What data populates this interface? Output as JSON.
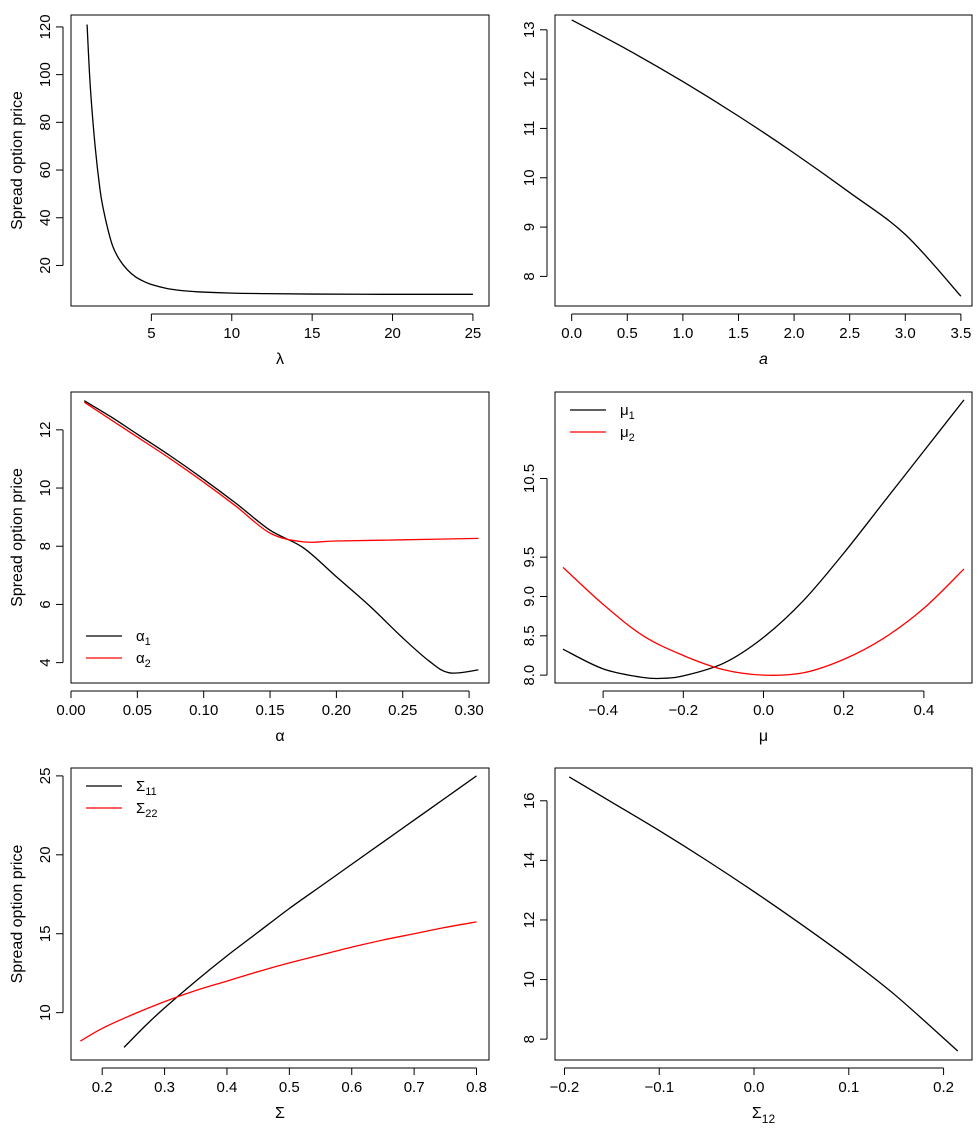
{
  "chart_data": [
    {
      "type": "line",
      "id": "lambda",
      "title": "",
      "xlabel": "λ",
      "ylabel": "Spread option price",
      "xlim": [
        0,
        26
      ],
      "ylim": [
        3,
        125
      ],
      "xticks": [
        5,
        10,
        15,
        20,
        25
      ],
      "yticks": [
        20,
        40,
        60,
        80,
        100,
        120
      ],
      "series": [
        {
          "name": "",
          "color": "#000000",
          "x": [
            1,
            1.2,
            1.5,
            1.8,
            2,
            2.3,
            2.6,
            3,
            3.5,
            4,
            4.5,
            5,
            6,
            7,
            8,
            10,
            12,
            15,
            20,
            25
          ],
          "y": [
            121,
            95,
            70,
            52,
            44,
            35,
            28,
            22.6,
            18.2,
            15.3,
            13.4,
            12.0,
            10.3,
            9.4,
            8.9,
            8.4,
            8.2,
            8.0,
            7.9,
            7.9
          ]
        }
      ],
      "legend": null
    },
    {
      "type": "line",
      "id": "a",
      "title": "",
      "xlabel": "a",
      "ylabel": "",
      "xlim": [
        -0.15,
        3.6
      ],
      "ylim": [
        7.4,
        13.3
      ],
      "xticks": [
        0.0,
        0.5,
        1.0,
        1.5,
        2.0,
        2.5,
        3.0,
        3.5
      ],
      "ytick_labels_fixed": false,
      "yticks": [
        8,
        9,
        10,
        11,
        12,
        13
      ],
      "series": [
        {
          "name": "",
          "color": "#000000",
          "x": [
            0,
            0.5,
            1.0,
            1.5,
            2.0,
            2.5,
            3.0,
            3.5
          ],
          "y": [
            13.2,
            12.6,
            11.95,
            11.25,
            10.5,
            9.7,
            8.85,
            7.6
          ]
        }
      ],
      "legend": null
    },
    {
      "type": "line",
      "id": "alpha",
      "title": "",
      "xlabel": "α",
      "ylabel": "Spread option price",
      "xlim": [
        0,
        0.315
      ],
      "ylim": [
        3.3,
        13.3
      ],
      "xticks": [
        0.0,
        0.05,
        0.1,
        0.15,
        0.2,
        0.25,
        0.3
      ],
      "xtick_labels": [
        "0.00",
        "0.05",
        "0.10",
        "0.15",
        "0.20",
        "0.25",
        "0.30"
      ],
      "yticks": [
        4,
        6,
        8,
        10,
        12
      ],
      "series": [
        {
          "name": "α1",
          "color": "#000000",
          "x": [
            0.01,
            0.03,
            0.05,
            0.075,
            0.1,
            0.125,
            0.15,
            0.175,
            0.2,
            0.225,
            0.25,
            0.27,
            0.285,
            0.307
          ],
          "y": [
            13.0,
            12.45,
            11.85,
            11.1,
            10.3,
            9.45,
            8.55,
            7.95,
            6.95,
            5.95,
            4.85,
            4.05,
            3.65,
            3.75
          ]
        },
        {
          "name": "α2",
          "color": "#ff0000",
          "x": [
            0.01,
            0.03,
            0.05,
            0.075,
            0.1,
            0.125,
            0.15,
            0.175,
            0.2,
            0.25,
            0.307
          ],
          "y": [
            12.95,
            12.35,
            11.75,
            11.0,
            10.2,
            9.35,
            8.45,
            8.15,
            8.18,
            8.22,
            8.27
          ]
        }
      ],
      "legend": {
        "position": "bottom-left",
        "entries": [
          "α",
          "α"
        ],
        "subscripts": [
          "1",
          "2"
        ]
      }
    },
    {
      "type": "line",
      "id": "mu",
      "title": "",
      "xlabel": "μ",
      "ylabel": "",
      "xlim": [
        -0.52,
        0.52
      ],
      "ylim": [
        7.9,
        11.6
      ],
      "xticks": [
        -0.4,
        -0.2,
        0.0,
        0.2,
        0.4
      ],
      "xtick_labels": [
        "−0.4",
        "−0.2",
        "0.0",
        "0.2",
        "0.4"
      ],
      "yticks": [
        8.0,
        8.5,
        9.0,
        9.5,
        10.5
      ],
      "ytick_labels": [
        "8.0",
        "8.5",
        "9.0",
        "9.5",
        "10.5"
      ],
      "series": [
        {
          "name": "μ1",
          "color": "#000000",
          "x": [
            -0.5,
            -0.4,
            -0.3,
            -0.25,
            -0.2,
            -0.1,
            0.0,
            0.1,
            0.2,
            0.3,
            0.4,
            0.5
          ],
          "y": [
            8.33,
            8.08,
            7.97,
            7.96,
            7.99,
            8.15,
            8.48,
            8.95,
            9.55,
            10.2,
            10.85,
            11.5
          ]
        },
        {
          "name": "μ2",
          "color": "#ff0000",
          "x": [
            -0.5,
            -0.4,
            -0.3,
            -0.2,
            -0.1,
            0.0,
            0.1,
            0.2,
            0.3,
            0.4,
            0.5
          ],
          "y": [
            9.37,
            8.9,
            8.5,
            8.25,
            8.07,
            8.0,
            8.03,
            8.2,
            8.47,
            8.85,
            9.35
          ]
        }
      ],
      "legend": {
        "position": "top-left",
        "entries": [
          "μ",
          "μ"
        ],
        "subscripts": [
          "1",
          "2"
        ]
      }
    },
    {
      "type": "line",
      "id": "sigma",
      "title": "",
      "xlabel": "Σ",
      "ylabel": "Spread option price",
      "xlim": [
        0.15,
        0.82
      ],
      "ylim": [
        7,
        25.5
      ],
      "xticks": [
        0.2,
        0.3,
        0.4,
        0.5,
        0.6,
        0.7,
        0.8
      ],
      "yticks": [
        10,
        15,
        20,
        25
      ],
      "series": [
        {
          "name": "Σ11",
          "color": "#000000",
          "x": [
            0.235,
            0.27,
            0.3,
            0.35,
            0.4,
            0.45,
            0.5,
            0.55,
            0.6,
            0.65,
            0.7,
            0.75,
            0.8
          ],
          "y": [
            7.8,
            9.2,
            10.3,
            12.0,
            13.6,
            15.1,
            16.6,
            18.0,
            19.4,
            20.8,
            22.2,
            23.6,
            25.0
          ]
        },
        {
          "name": "Σ22",
          "color": "#ff0000",
          "x": [
            0.165,
            0.2,
            0.25,
            0.3,
            0.35,
            0.4,
            0.45,
            0.5,
            0.55,
            0.6,
            0.65,
            0.7,
            0.75,
            0.8
          ],
          "y": [
            8.2,
            9.0,
            9.9,
            10.7,
            11.4,
            12.0,
            12.6,
            13.15,
            13.65,
            14.15,
            14.6,
            15.0,
            15.4,
            15.75
          ]
        }
      ],
      "legend": {
        "position": "top-left",
        "entries": [
          "Σ",
          "Σ"
        ],
        "subscripts": [
          "11",
          "22"
        ]
      }
    },
    {
      "type": "line",
      "id": "sigma12",
      "title": "",
      "xlabel": "Σ",
      "xlabel_subscript": "12",
      "ylabel": "",
      "xlim": [
        -0.21,
        0.23
      ],
      "ylim": [
        7.3,
        17.1
      ],
      "xticks": [
        -0.2,
        -0.1,
        0.0,
        0.1,
        0.2
      ],
      "xtick_labels": [
        "−0.2",
        "−0.1",
        "0.0",
        "0.1",
        "0.2"
      ],
      "yticks": [
        8,
        10,
        12,
        14,
        16
      ],
      "series": [
        {
          "name": "",
          "color": "#000000",
          "x": [
            -0.195,
            -0.15,
            -0.1,
            -0.05,
            0.0,
            0.05,
            0.1,
            0.15,
            0.215
          ],
          "y": [
            16.8,
            15.95,
            15.0,
            14.0,
            12.95,
            11.85,
            10.7,
            9.45,
            7.6
          ]
        }
      ],
      "legend": null
    }
  ]
}
